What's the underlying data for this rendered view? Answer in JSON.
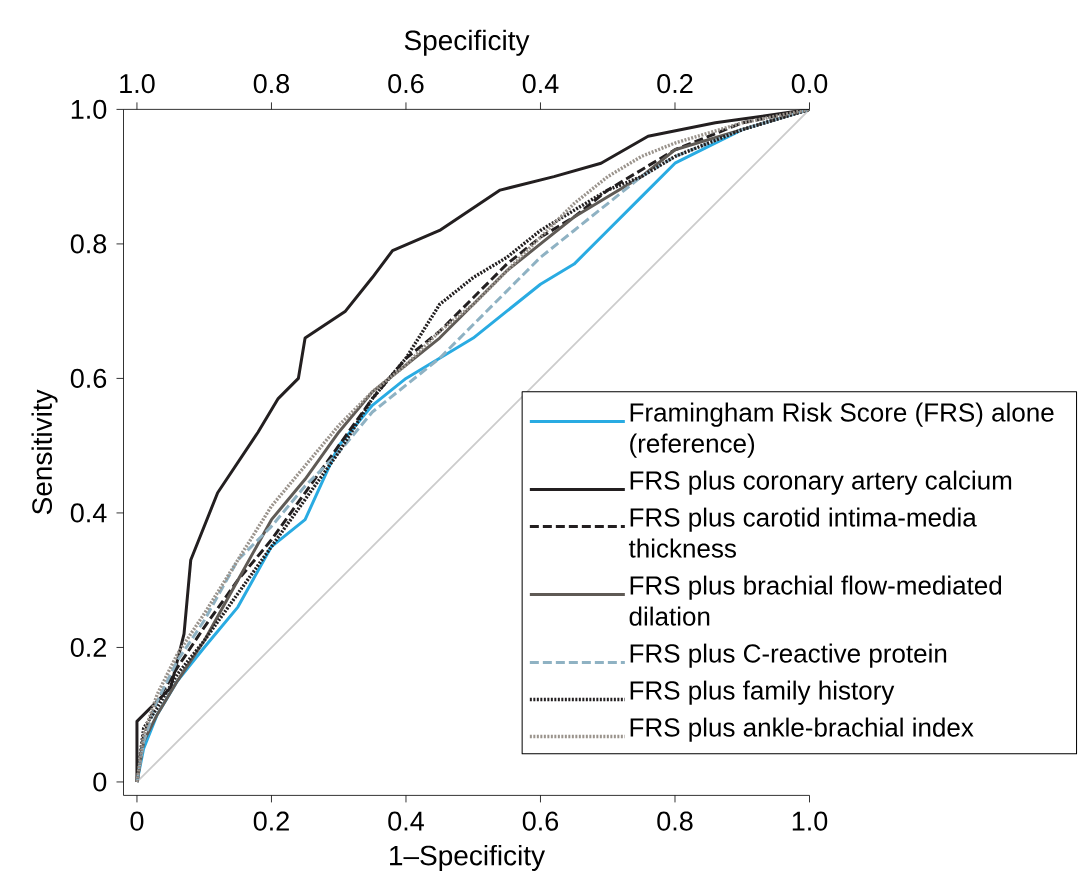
{
  "chart_data": {
    "type": "line",
    "xlabel": "1–Specificity",
    "ylabel": "Sensitivity",
    "x2label": "Specificity",
    "x": [
      0,
      0.01,
      0.03,
      0.06,
      0.1,
      0.15,
      0.2,
      0.25,
      0.3,
      0.35,
      0.4,
      0.45,
      0.5,
      0.55,
      0.6,
      0.65,
      0.7,
      0.75,
      0.8,
      0.9,
      1
    ],
    "series": [
      {
        "name": "Framingham Risk Score (FRS) alone (reference)",
        "color": "#29abe2",
        "line_style": "solid",
        "values": [
          0,
          0.05,
          0.1,
          0.15,
          0.2,
          0.26,
          0.35,
          0.39,
          0.5,
          0.56,
          0.6,
          0.63,
          0.66,
          0.7,
          0.74,
          0.77,
          0.82,
          0.87,
          0.92,
          0.97,
          1
        ]
      },
      {
        "name": "FRS plus coronary artery calcium",
        "color": "#231f20",
        "line_style": "solid",
        "x": [
          0,
          0,
          0.02,
          0.05,
          0.07,
          0.08,
          0.12,
          0.18,
          0.21,
          0.24,
          0.25,
          0.31,
          0.35,
          0.38,
          0.45,
          0.54,
          0.62,
          0.69,
          0.76,
          0.86,
          1
        ],
        "values": [
          0,
          0.09,
          0.11,
          0.14,
          0.22,
          0.33,
          0.43,
          0.52,
          0.57,
          0.6,
          0.66,
          0.7,
          0.75,
          0.79,
          0.82,
          0.88,
          0.9,
          0.92,
          0.96,
          0.98,
          1
        ]
      },
      {
        "name": "FRS plus carotid intima-media thickness",
        "color": "#231f20",
        "line_style": "dashed",
        "values": [
          0,
          0.07,
          0.12,
          0.17,
          0.23,
          0.3,
          0.36,
          0.43,
          0.5,
          0.57,
          0.63,
          0.67,
          0.72,
          0.77,
          0.81,
          0.84,
          0.88,
          0.91,
          0.94,
          0.98,
          1
        ]
      },
      {
        "name": "FRS plus brachial flow-mediated dilation",
        "color": "#5f5a55",
        "line_style": "solid",
        "values": [
          0,
          0.06,
          0.1,
          0.15,
          0.21,
          0.3,
          0.39,
          0.45,
          0.52,
          0.58,
          0.62,
          0.66,
          0.71,
          0.76,
          0.8,
          0.84,
          0.87,
          0.9,
          0.94,
          0.97,
          1
        ]
      },
      {
        "name": "FRS plus C-reactive protein",
        "color": "#8fb2c3",
        "line_style": "dashed",
        "values": [
          0,
          0.06,
          0.12,
          0.18,
          0.24,
          0.33,
          0.38,
          0.44,
          0.49,
          0.55,
          0.59,
          0.63,
          0.68,
          0.73,
          0.78,
          0.82,
          0.86,
          0.9,
          0.93,
          0.97,
          1
        ]
      },
      {
        "name": "FRS plus family history",
        "color": "#231f20",
        "line_style": "dotted",
        "values": [
          0,
          0.08,
          0.11,
          0.16,
          0.21,
          0.28,
          0.35,
          0.42,
          0.49,
          0.57,
          0.63,
          0.71,
          0.75,
          0.78,
          0.82,
          0.85,
          0.88,
          0.9,
          0.93,
          0.97,
          1
        ]
      },
      {
        "name": "FRS plus ankle-brachial index",
        "color": "#9a938c",
        "line_style": "dotted",
        "values": [
          0,
          0.07,
          0.13,
          0.19,
          0.25,
          0.33,
          0.41,
          0.47,
          0.53,
          0.58,
          0.62,
          0.67,
          0.71,
          0.76,
          0.81,
          0.86,
          0.9,
          0.93,
          0.95,
          0.98,
          1
        ]
      },
      {
        "color": "#cccccc",
        "line_style": "solid",
        "x": [
          0,
          1
        ],
        "values": [
          0,
          1
        ]
      }
    ],
    "xlim": [
      -0.02,
      1.0
    ],
    "ylim": [
      -0.02,
      1.0
    ],
    "xticks": [
      0,
      0.2,
      0.4,
      0.6,
      0.8,
      {
        "value": 1,
        "label": "1.0"
      }
    ],
    "yticks": [
      0,
      0.2,
      0.4,
      0.6,
      0.8,
      {
        "value": 1,
        "label": "1.0"
      }
    ],
    "x2lim": [
      1.02,
      0.0
    ],
    "x2ticks": [
      {
        "value": 1,
        "label": "1.0"
      },
      0.8,
      0.6,
      0.4,
      0.2,
      {
        "value": 0,
        "label": "0.0"
      }
    ],
    "grid": false,
    "legend": "right"
  }
}
